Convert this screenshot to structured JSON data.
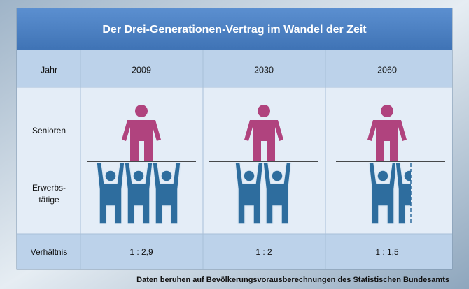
{
  "title": "Der Drei-Generationen-Vertrag im Wandel der Zeit",
  "table": {
    "header": [
      "Jahr",
      "2009",
      "2030",
      "2060"
    ],
    "row_labels": {
      "seniors": "Senioren",
      "workers": [
        "Erwerbs-",
        "tätige"
      ]
    },
    "ratio": [
      "Verhältnis",
      "1 : 2,9",
      "1 : 2",
      "1 : 1,5"
    ]
  },
  "footnote": "Daten beruhen auf Bevölkerungsvorausberechnungen des Statistischen Bundesamts"
}
